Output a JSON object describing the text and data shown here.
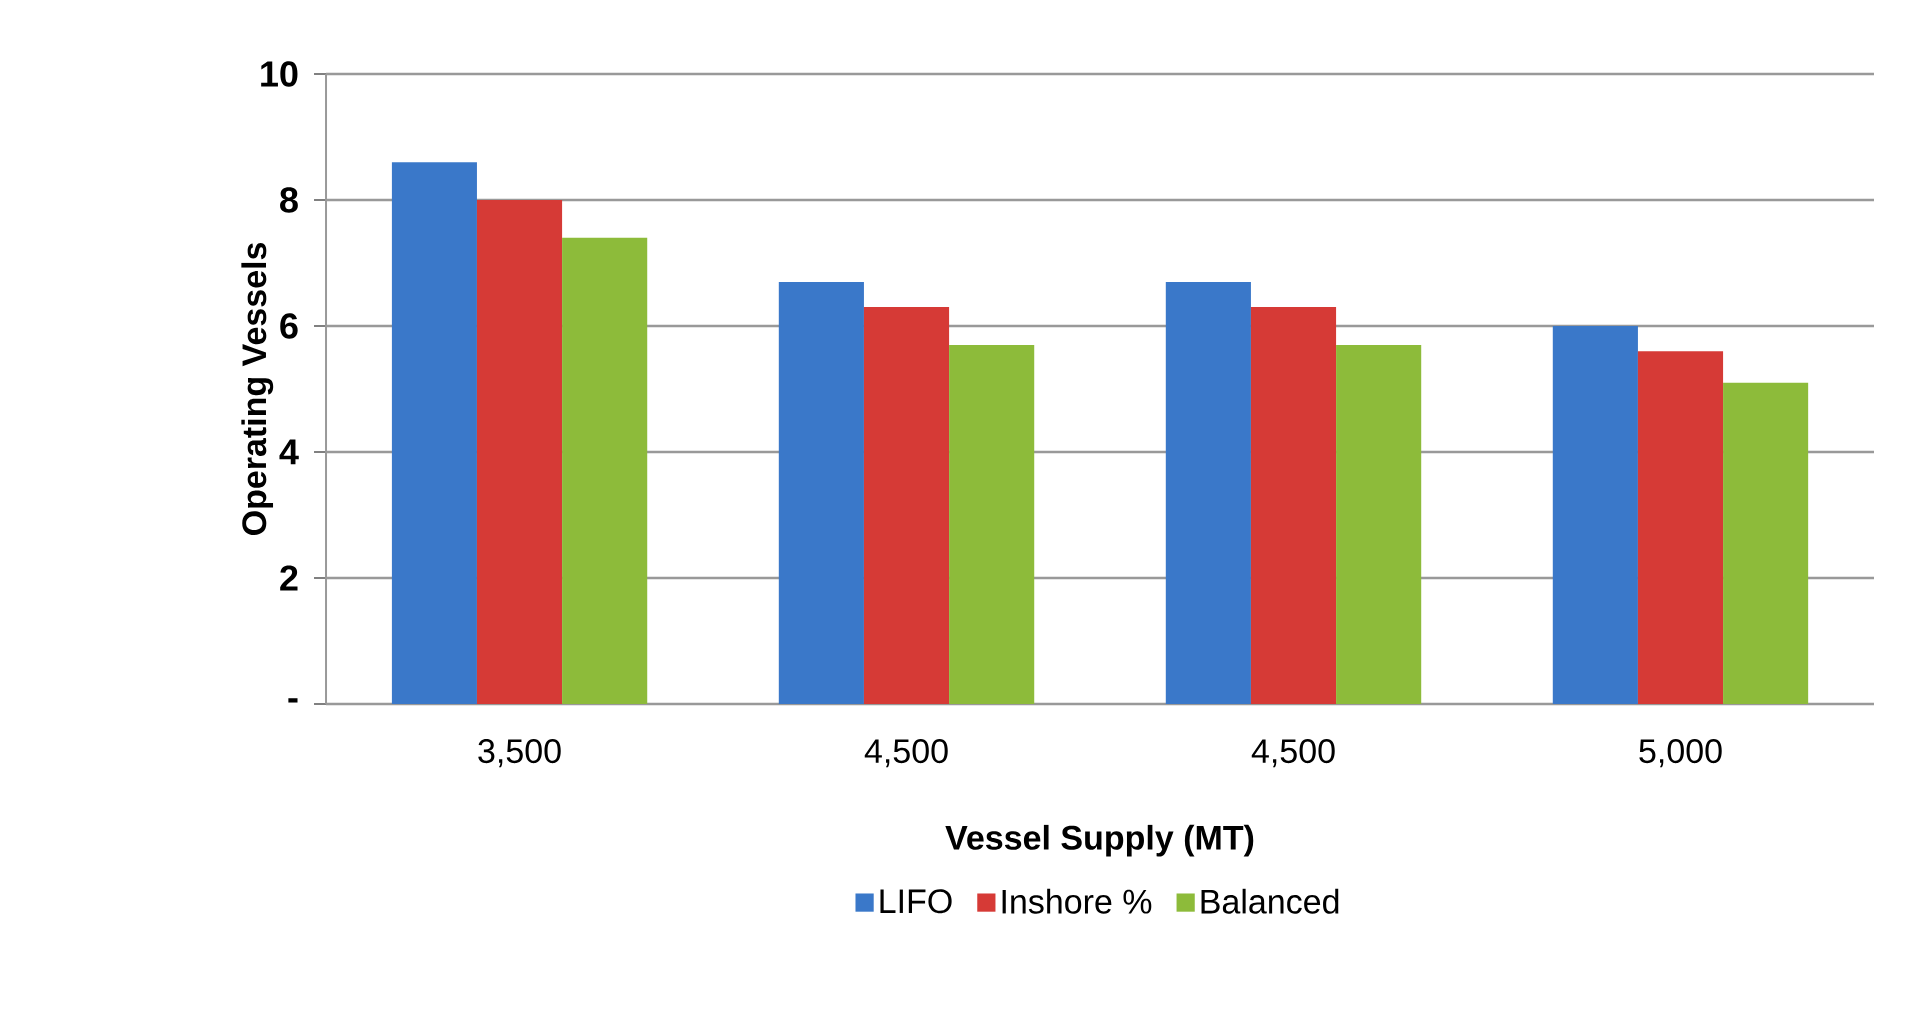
{
  "chart_data": {
    "type": "bar",
    "xlabel": "Vessel Supply (MT)",
    "ylabel": "Operating Vessels",
    "categories": [
      "3,500",
      "4,500",
      "4,500",
      "5,000"
    ],
    "series": [
      {
        "name": "LIFO",
        "color": "#3a78c9",
        "values": [
          8.6,
          6.7,
          6.7,
          6.0
        ]
      },
      {
        "name": "Inshore %",
        "color": "#d63a36",
        "values": [
          8.0,
          6.3,
          6.3,
          5.6
        ]
      },
      {
        "name": "Balanced",
        "color": "#8dbb3a",
        "values": [
          7.4,
          5.7,
          5.7,
          5.1
        ]
      }
    ],
    "ylim": [
      0,
      10
    ],
    "yticks": [
      {
        "value": 0,
        "label": "-"
      },
      2,
      4,
      6,
      8,
      10
    ],
    "grid": "y",
    "legend": "bottom"
  }
}
